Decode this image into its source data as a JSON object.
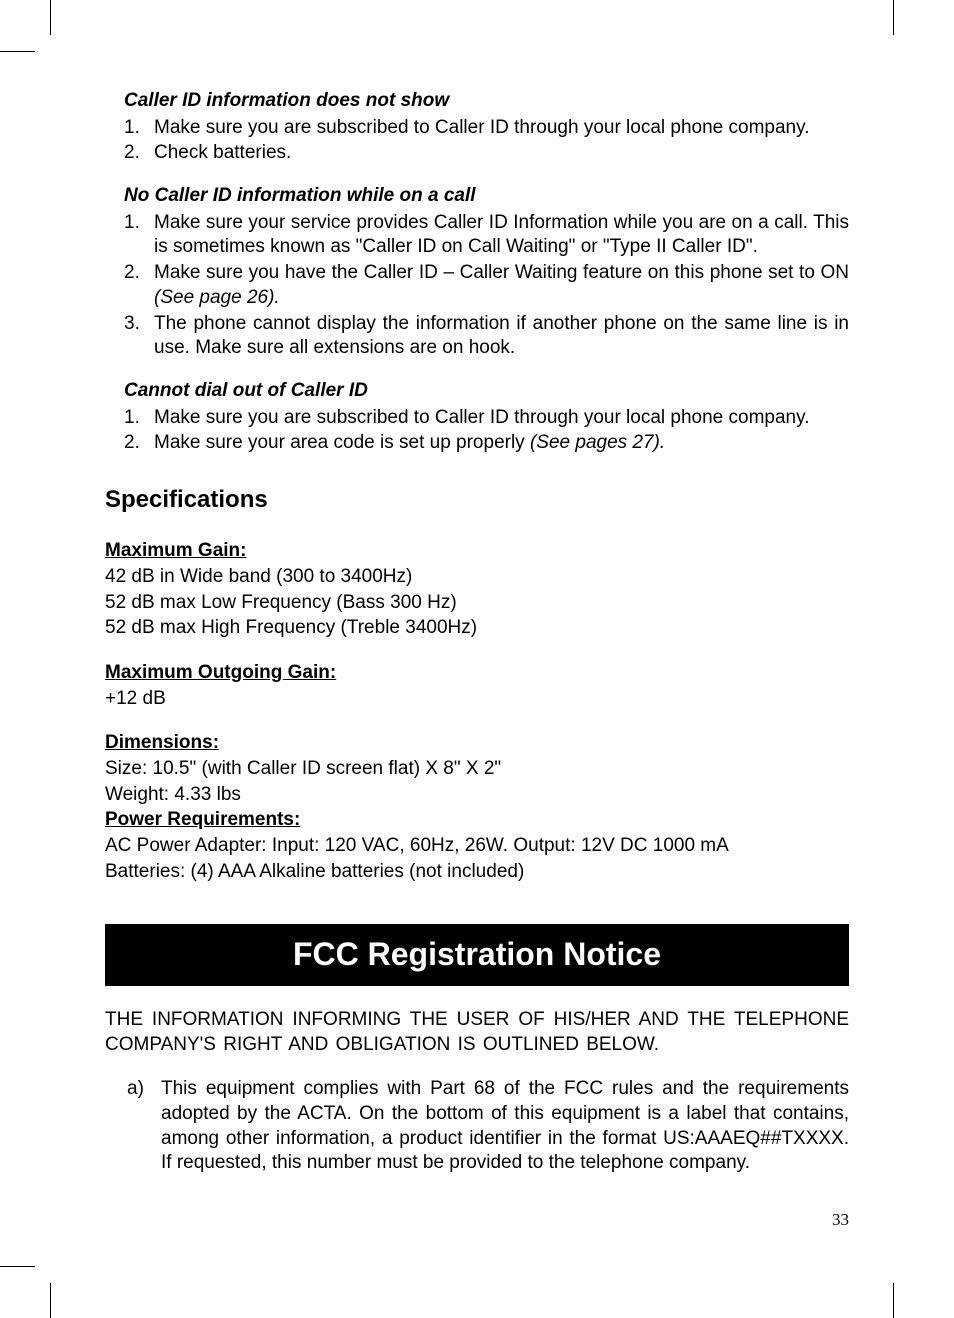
{
  "page_number": "33",
  "sections": {
    "s1": {
      "heading": "Caller ID information does not show",
      "items": [
        {
          "num": "1.",
          "text": "Make sure you are subscribed to Caller ID through your local phone company."
        },
        {
          "num": "2.",
          "text": "Check batteries."
        }
      ]
    },
    "s2": {
      "heading": "No Caller ID information while on a call",
      "items": [
        {
          "num": "1.",
          "text": "Make sure your service provides Caller ID Information while you are on a call. This is sometimes known as \"Caller ID on Call Waiting\" or \"Type II Caller ID\"."
        },
        {
          "num": "2.",
          "text_a": "Make sure you have the Caller ID – Caller Waiting feature on this phone set to ON ",
          "ref": "(See page 26)."
        },
        {
          "num": "3.",
          "text": "The phone cannot display the information if another phone on the same line is in use. Make sure all extensions are on hook."
        }
      ]
    },
    "s3": {
      "heading": "Cannot dial out of Caller ID",
      "items": [
        {
          "num": "1.",
          "text": "Make sure you are subscribed to Caller ID through your local phone company."
        },
        {
          "num": "2.",
          "text_a": "Make sure your area code is set up properly ",
          "ref": "(See pages 27)."
        }
      ]
    }
  },
  "specs": {
    "heading": "Specifications",
    "gain": {
      "label": "Maximum Gain:",
      "l1": "42 dB in Wide band (300 to 3400Hz)",
      "l2": "52 dB max Low Frequency (Bass 300 Hz)",
      "l3": "52 dB max High Frequency (Treble 3400Hz)"
    },
    "outgoing": {
      "label": "Maximum Outgoing Gain:",
      "l1": "+12 dB"
    },
    "dimensions": {
      "label": "Dimensions:",
      "l1": "Size:  10.5\" (with Caller ID screen flat) X 8\" X 2\"",
      "l2": "Weight: 4.33 lbs"
    },
    "power": {
      "label": "Power Requirements:",
      "l1": "AC Power Adapter: Input: 120 VAC, 60Hz, 26W. Output: 12V DC 1000 mA",
      "l2": "Batteries: (4) AAA Alkaline batteries (not included)"
    }
  },
  "fcc": {
    "banner": "FCC Registration Notice",
    "intro": "THE INFORMATION INFORMING THE USER OF HIS/HER AND THE TELEPHONE COMPANY'S RIGHT AND OBLIGATION IS OUTLINED BELOW.",
    "items": [
      {
        "letter": "a)",
        "text": "This equipment complies with Part 68 of the FCC rules and the requirements adopted by the ACTA. On the bottom of this equipment is a label that contains, among other information, a product identifier in the format US:AAAEQ##TXXXX.  If requested, this number must be provided to the telephone company."
      }
    ]
  }
}
